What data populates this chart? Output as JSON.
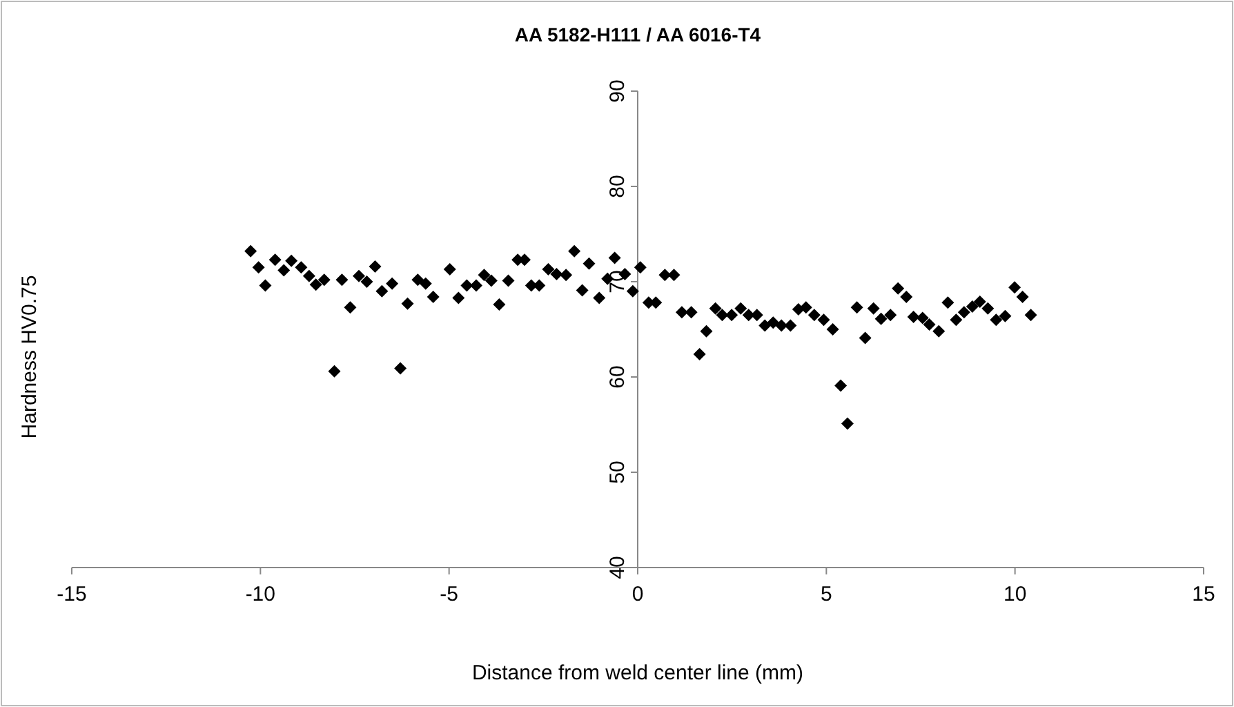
{
  "chart_data": {
    "type": "scatter",
    "title": "AA 5182-H111 / AA 6016-T4",
    "xlabel": "Distance from weld center line (mm)",
    "ylabel": "Hardness HV0.75",
    "xlim": [
      -15,
      15
    ],
    "ylim": [
      40,
      90
    ],
    "xticks": [
      -15,
      -10,
      -5,
      0,
      5,
      10,
      15
    ],
    "yticks": [
      40,
      50,
      60,
      70,
      80,
      90
    ],
    "marker": "diamond",
    "grid": false,
    "series": [
      {
        "color": "#000000",
        "x": [
          -10.26,
          -10.05,
          -9.87,
          -9.61,
          -9.38,
          -9.18,
          -8.92,
          -8.71,
          -8.53,
          -8.31,
          -8.04,
          -7.84,
          -7.62,
          -7.39,
          -7.18,
          -6.96,
          -6.78,
          -6.51,
          -6.29,
          -6.1,
          -5.83,
          -5.62,
          -5.42,
          -4.98,
          -4.75,
          -4.53,
          -4.28,
          -4.07,
          -3.88,
          -3.67,
          -3.43,
          -3.18,
          -3.0,
          -2.82,
          -2.61,
          -2.37,
          -2.15,
          -1.9,
          -1.68,
          -1.47,
          -1.29,
          -1.02,
          -0.8,
          -0.61,
          -0.34,
          -0.13,
          0.07,
          0.29,
          0.48,
          0.72,
          0.96,
          1.17,
          1.42,
          1.64,
          1.82,
          2.06,
          2.24,
          2.49,
          2.73,
          2.94,
          3.16,
          3.37,
          3.59,
          3.81,
          4.05,
          4.26,
          4.46,
          4.68,
          4.93,
          5.17,
          5.38,
          5.56,
          5.81,
          6.03,
          6.25,
          6.45,
          6.7,
          6.9,
          7.12,
          7.31,
          7.55,
          7.73,
          7.98,
          8.22,
          8.44,
          8.65,
          8.87,
          9.07,
          9.28,
          9.5,
          9.74,
          9.99,
          10.2,
          10.42
        ],
        "values": [
          73.2,
          71.5,
          69.6,
          72.3,
          71.2,
          72.2,
          71.5,
          70.6,
          69.7,
          70.2,
          60.6,
          70.2,
          67.3,
          70.6,
          70.0,
          71.6,
          69.0,
          69.8,
          60.9,
          67.7,
          70.2,
          69.8,
          68.4,
          71.3,
          68.3,
          69.6,
          69.6,
          70.7,
          70.1,
          67.6,
          70.1,
          72.3,
          72.3,
          69.6,
          69.6,
          71.3,
          70.8,
          70.7,
          73.2,
          69.1,
          71.9,
          68.3,
          70.3,
          72.5,
          70.8,
          69.0,
          71.5,
          67.8,
          67.8,
          70.7,
          70.7,
          66.8,
          66.8,
          62.4,
          64.8,
          67.2,
          66.5,
          66.5,
          67.2,
          66.5,
          66.5,
          65.4,
          65.7,
          65.4,
          65.4,
          67.1,
          67.3,
          66.5,
          66.0,
          65.0,
          59.1,
          55.1,
          67.3,
          64.1,
          67.2,
          66.1,
          66.5,
          69.3,
          68.4,
          66.3,
          66.2,
          65.5,
          64.8,
          67.8,
          66.0,
          66.8,
          67.4,
          67.9,
          67.2,
          66.0,
          66.4,
          69.4,
          68.4,
          66.5
        ]
      }
    ]
  }
}
